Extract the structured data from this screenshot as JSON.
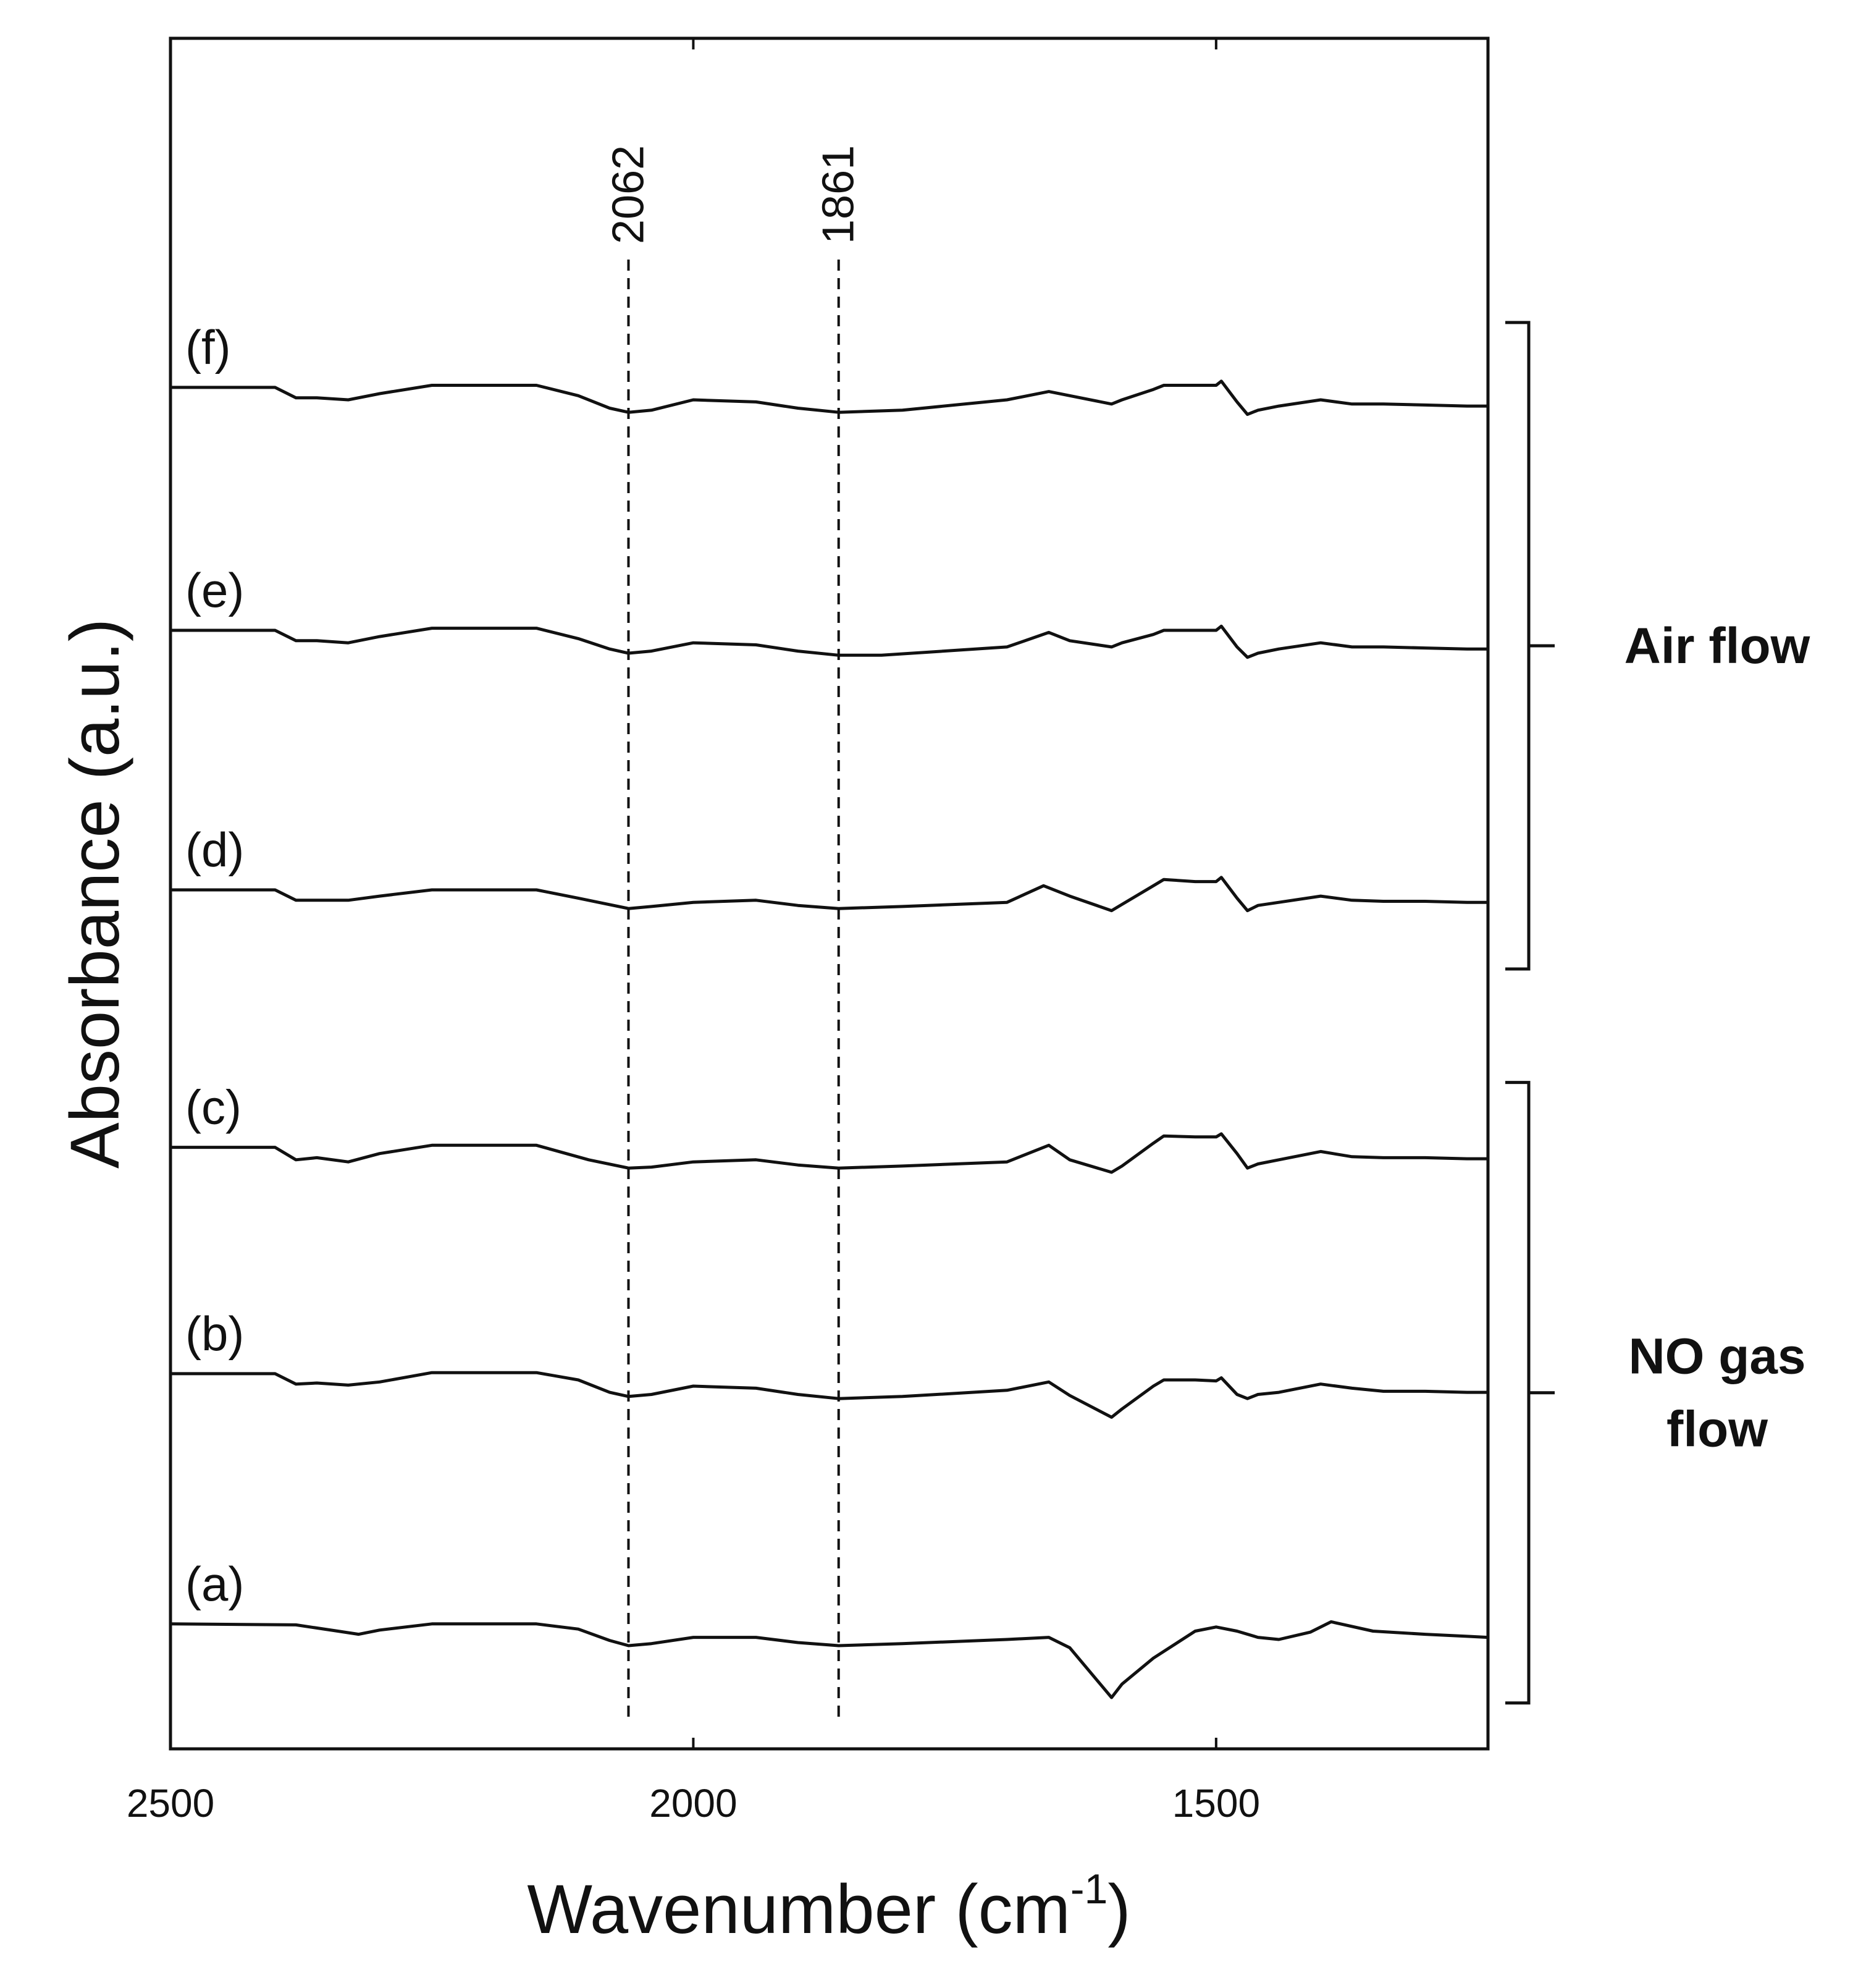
{
  "chart_data": {
    "type": "line",
    "title": "",
    "xlabel": "Wavenumber (cm",
    "xlabel_sup": "-1",
    "xlabel_close": ")",
    "ylabel": "Absorbance (a.u.)",
    "xlim": [
      2500,
      1240
    ],
    "x_ticks": [
      {
        "value": 2500,
        "label": "2500"
      },
      {
        "value": 2000,
        "label": "2000"
      },
      {
        "value": 1500,
        "label": "1500"
      }
    ],
    "y_ticks_shown": false,
    "reference_lines": [
      {
        "value": 2062,
        "label": "2062"
      },
      {
        "value": 1861,
        "label": "1861"
      }
    ],
    "groups": [
      {
        "name": "Air flow",
        "lines": [
          "Air flow"
        ],
        "members": [
          "(d)",
          "(e)",
          "(f)"
        ]
      },
      {
        "name": "NO gas flow",
        "lines": [
          "NO gas",
          "flow"
        ],
        "members": [
          "(a)",
          "(b)",
          "(c)"
        ]
      }
    ],
    "series": [
      {
        "name": "(a)",
        "offset": 0.0,
        "x": [
          2500,
          2380,
          2340,
          2320,
          2300,
          2250,
          2150,
          2110,
          2080,
          2062,
          2040,
          2000,
          1940,
          1900,
          1861,
          1800,
          1700,
          1660,
          1640,
          1600,
          1590,
          1560,
          1520,
          1500,
          1480,
          1460,
          1440,
          1410,
          1390,
          1350,
          1300,
          1260,
          1240
        ],
        "y": [
          0.43,
          0.42,
          0.36,
          0.33,
          0.37,
          0.43,
          0.43,
          0.38,
          0.27,
          0.22,
          0.24,
          0.3,
          0.3,
          0.25,
          0.22,
          0.24,
          0.28,
          0.3,
          0.2,
          -0.28,
          -0.15,
          0.1,
          0.36,
          0.4,
          0.36,
          0.3,
          0.28,
          0.35,
          0.45,
          0.36,
          0.33,
          0.31,
          0.3
        ]
      },
      {
        "name": "(b)",
        "offset": 2.3,
        "x": [
          2500,
          2400,
          2380,
          2360,
          2330,
          2300,
          2250,
          2150,
          2110,
          2080,
          2062,
          2040,
          2000,
          1940,
          1900,
          1861,
          1800,
          1700,
          1660,
          1640,
          1600,
          1590,
          1560,
          1550,
          1520,
          1500,
          1495,
          1480,
          1470,
          1460,
          1440,
          1400,
          1370,
          1340,
          1300,
          1260,
          1240
        ],
        "y": [
          0.54,
          0.54,
          0.44,
          0.45,
          0.43,
          0.46,
          0.55,
          0.55,
          0.48,
          0.36,
          0.32,
          0.34,
          0.42,
          0.4,
          0.34,
          0.3,
          0.32,
          0.38,
          0.46,
          0.33,
          0.12,
          0.2,
          0.42,
          0.48,
          0.48,
          0.47,
          0.5,
          0.34,
          0.3,
          0.34,
          0.36,
          0.44,
          0.4,
          0.37,
          0.37,
          0.36,
          0.36
        ]
      },
      {
        "name": "(c)",
        "offset": 4.6,
        "x": [
          2500,
          2400,
          2380,
          2360,
          2330,
          2300,
          2250,
          2150,
          2100,
          2062,
          2040,
          2000,
          1940,
          1900,
          1861,
          1800,
          1700,
          1660,
          1640,
          1600,
          1590,
          1560,
          1550,
          1520,
          1500,
          1495,
          1480,
          1470,
          1460,
          1440,
          1400,
          1370,
          1340,
          1300,
          1260,
          1240
        ],
        "y": [
          0.42,
          0.42,
          0.3,
          0.32,
          0.28,
          0.36,
          0.44,
          0.44,
          0.3,
          0.22,
          0.23,
          0.28,
          0.3,
          0.25,
          0.22,
          0.24,
          0.28,
          0.44,
          0.3,
          0.18,
          0.24,
          0.46,
          0.53,
          0.52,
          0.52,
          0.55,
          0.36,
          0.22,
          0.26,
          0.3,
          0.38,
          0.33,
          0.32,
          0.32,
          0.31,
          0.31
        ]
      },
      {
        "name": "(d)",
        "offset": 7.1,
        "x": [
          2500,
          2400,
          2380,
          2360,
          2330,
          2300,
          2250,
          2150,
          2110,
          2062,
          2040,
          2000,
          1940,
          1900,
          1861,
          1800,
          1700,
          1665,
          1640,
          1600,
          1590,
          1560,
          1550,
          1520,
          1500,
          1495,
          1480,
          1470,
          1460,
          1440,
          1400,
          1370,
          1340,
          1300,
          1260,
          1240
        ],
        "y": [
          0.4,
          0.4,
          0.3,
          0.3,
          0.3,
          0.34,
          0.4,
          0.4,
          0.32,
          0.22,
          0.24,
          0.28,
          0.3,
          0.25,
          0.22,
          0.24,
          0.28,
          0.44,
          0.34,
          0.2,
          0.26,
          0.44,
          0.5,
          0.48,
          0.48,
          0.52,
          0.32,
          0.2,
          0.25,
          0.28,
          0.34,
          0.3,
          0.29,
          0.29,
          0.28,
          0.28
        ]
      },
      {
        "name": "(e)",
        "offset": 9.4,
        "x": [
          2500,
          2400,
          2380,
          2360,
          2330,
          2300,
          2250,
          2150,
          2110,
          2080,
          2062,
          2040,
          2000,
          1940,
          1900,
          1861,
          1820,
          1700,
          1660,
          1640,
          1600,
          1590,
          1560,
          1550,
          1520,
          1500,
          1495,
          1480,
          1470,
          1460,
          1440,
          1400,
          1370,
          1340,
          1300,
          1260,
          1240
        ],
        "y": [
          0.6,
          0.6,
          0.5,
          0.5,
          0.48,
          0.54,
          0.62,
          0.62,
          0.52,
          0.42,
          0.38,
          0.4,
          0.48,
          0.46,
          0.4,
          0.36,
          0.36,
          0.44,
          0.58,
          0.5,
          0.44,
          0.48,
          0.56,
          0.6,
          0.6,
          0.6,
          0.64,
          0.44,
          0.34,
          0.38,
          0.42,
          0.48,
          0.44,
          0.44,
          0.43,
          0.42,
          0.42
        ]
      },
      {
        "name": "(f)",
        "offset": 11.7,
        "x": [
          2500,
          2400,
          2380,
          2360,
          2330,
          2300,
          2250,
          2150,
          2110,
          2080,
          2062,
          2040,
          2000,
          1940,
          1900,
          1861,
          1800,
          1700,
          1660,
          1640,
          1600,
          1590,
          1560,
          1550,
          1520,
          1500,
          1495,
          1480,
          1470,
          1460,
          1440,
          1400,
          1370,
          1340,
          1300,
          1260,
          1240
        ],
        "y": [
          0.64,
          0.64,
          0.54,
          0.54,
          0.52,
          0.58,
          0.66,
          0.66,
          0.56,
          0.44,
          0.4,
          0.42,
          0.52,
          0.5,
          0.44,
          0.4,
          0.42,
          0.52,
          0.6,
          0.56,
          0.48,
          0.52,
          0.62,
          0.66,
          0.66,
          0.66,
          0.7,
          0.5,
          0.38,
          0.42,
          0.46,
          0.52,
          0.48,
          0.48,
          0.47,
          0.46,
          0.46
        ]
      }
    ]
  }
}
